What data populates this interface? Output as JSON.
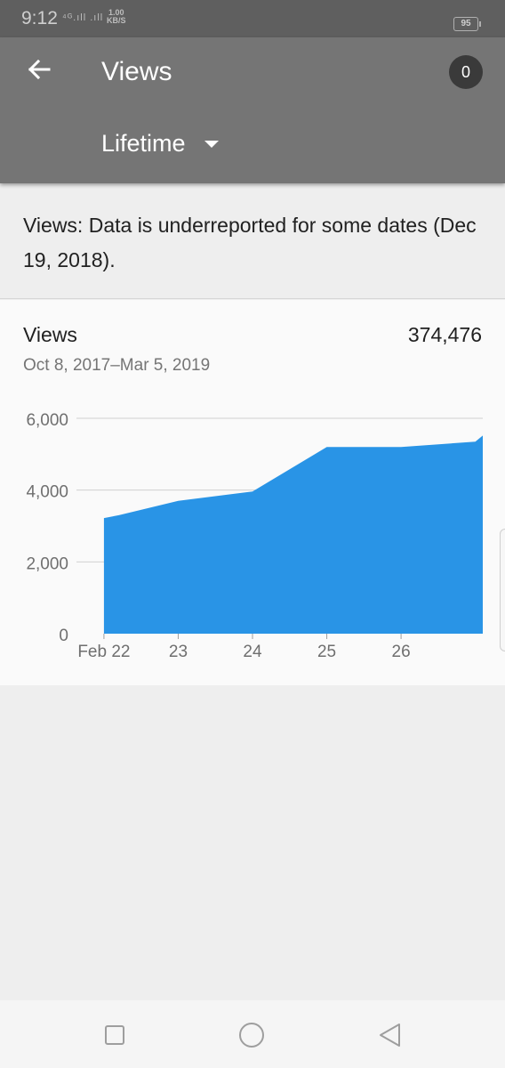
{
  "status_bar": {
    "time": "9:12",
    "signal": "⁴ᴳ.ıll .ıll",
    "speed_value": "1.00",
    "speed_unit": "KB/S",
    "battery": "95"
  },
  "app_bar": {
    "title": "Views",
    "badge_count": "0",
    "period": "Lifetime"
  },
  "notice": {
    "text": "Views: Data is underreported for some dates (Dec 19, 2018)."
  },
  "metric_card": {
    "label": "Views",
    "total": "374,476",
    "date_range": "Oct 8, 2017–Mar 5, 2019"
  },
  "colors": {
    "area_fill": "#2994e6",
    "app_bar": "#757575",
    "status_bar": "#5f5f5f"
  },
  "chart_data": {
    "type": "area",
    "x": [
      22,
      22.2,
      23,
      24,
      25,
      26,
      27,
      27.1
    ],
    "y": [
      3220,
      3300,
      3700,
      3960,
      5200,
      5200,
      5350,
      5520
    ],
    "xticks": [
      22,
      23,
      24,
      25,
      26
    ],
    "xtick_labels": [
      "Feb 22",
      "23",
      "24",
      "25",
      "26"
    ],
    "yticks": [
      0,
      2000,
      4000,
      6000
    ],
    "ytick_labels": [
      "0",
      "2,000",
      "4,000",
      "6,000"
    ],
    "ylim": [
      0,
      6000
    ],
    "grid": true
  },
  "nav_bar": {
    "buttons": [
      "square-icon",
      "circle-icon",
      "triangle-back-icon"
    ]
  }
}
